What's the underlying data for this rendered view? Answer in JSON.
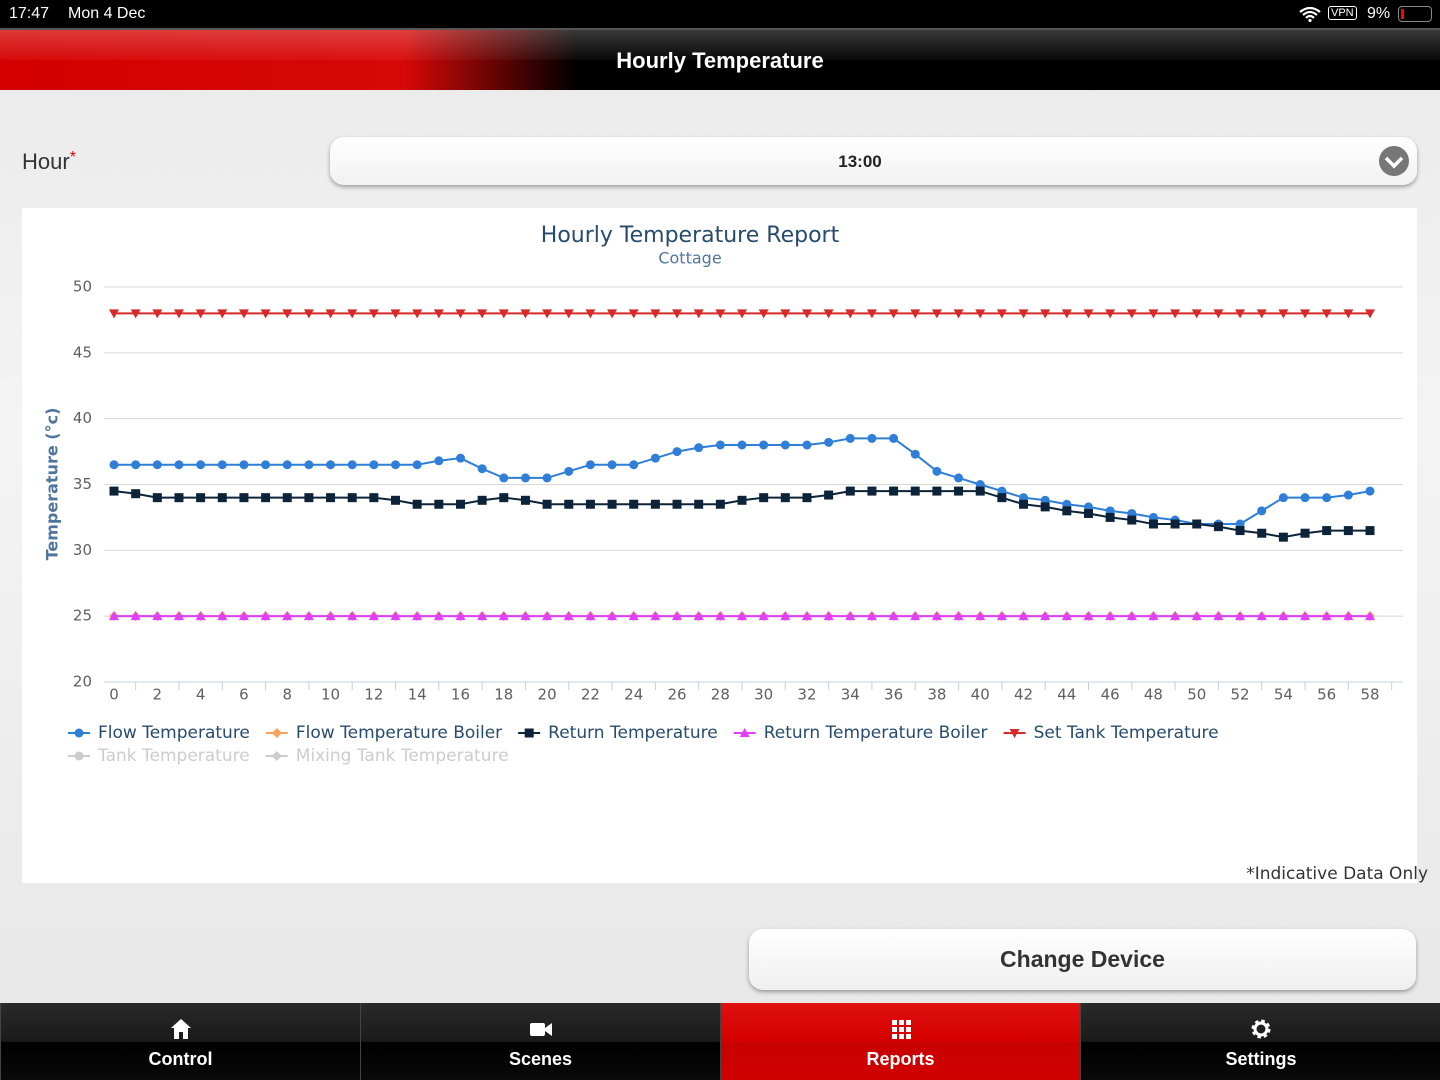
{
  "status_bar": {
    "time": "17:47",
    "date": "Mon 4 Dec",
    "vpn": "VPN",
    "battery": "9%"
  },
  "header": {
    "title": "Hourly Temperature"
  },
  "form": {
    "label": "Hour",
    "required": "*",
    "value": "13:00"
  },
  "chart_data": {
    "type": "line",
    "title": "Hourly Temperature Report",
    "subtitle": "Cottage",
    "y_label": "Temperature (°c)",
    "x": [
      0,
      1,
      2,
      3,
      4,
      5,
      6,
      7,
      8,
      9,
      10,
      11,
      12,
      13,
      14,
      15,
      16,
      17,
      18,
      19,
      20,
      21,
      22,
      23,
      24,
      25,
      26,
      27,
      28,
      29,
      30,
      31,
      32,
      33,
      34,
      35,
      36,
      37,
      38,
      39,
      40,
      41,
      42,
      43,
      44,
      45,
      46,
      47,
      48,
      49,
      50,
      51,
      52,
      53,
      54,
      55,
      56,
      57,
      58
    ],
    "xlim": [
      0,
      58
    ],
    "xticks": [
      0,
      2,
      4,
      6,
      8,
      10,
      12,
      14,
      16,
      18,
      20,
      22,
      24,
      26,
      28,
      30,
      32,
      34,
      36,
      38,
      40,
      42,
      44,
      46,
      48,
      50,
      52,
      54,
      56,
      58
    ],
    "ylim": [
      20,
      50
    ],
    "yticks": [
      20,
      25,
      30,
      35,
      40,
      45,
      50
    ],
    "grid": true,
    "series": [
      {
        "name": "Flow Temperature",
        "color": "#2f7ed8",
        "marker": "circle",
        "values": [
          36.5,
          36.5,
          36.5,
          36.5,
          36.5,
          36.5,
          36.5,
          36.5,
          36.5,
          36.5,
          36.5,
          36.5,
          36.5,
          36.5,
          36.5,
          36.8,
          37,
          36.2,
          35.5,
          35.5,
          35.5,
          36,
          36.5,
          36.5,
          36.5,
          37,
          37.5,
          37.8,
          38,
          38,
          38,
          38,
          38,
          38.2,
          38.5,
          38.5,
          38.5,
          37.3,
          36,
          35.5,
          35,
          34.5,
          34,
          33.8,
          33.5,
          33.3,
          33,
          32.8,
          32.5,
          32.3,
          32,
          32,
          32,
          33,
          34,
          34,
          34,
          34.2,
          34.5
        ]
      },
      {
        "name": "Flow Temperature Boiler",
        "color": "#f7a35c",
        "marker": "diamond",
        "values": [
          25,
          25,
          25,
          25,
          25,
          25,
          25,
          25,
          25,
          25,
          25,
          25,
          25,
          25,
          25,
          25,
          25,
          25,
          25,
          25,
          25,
          25,
          25,
          25,
          25,
          25,
          25,
          25,
          25,
          25,
          25,
          25,
          25,
          25,
          25,
          25,
          25,
          25,
          25,
          25,
          25,
          25,
          25,
          25,
          25,
          25,
          25,
          25,
          25,
          25,
          25,
          25,
          25,
          25,
          25,
          25,
          25,
          25,
          25
        ]
      },
      {
        "name": "Return Temperature",
        "color": "#0d233a",
        "marker": "square",
        "values": [
          34.5,
          34.3,
          34,
          34,
          34,
          34,
          34,
          34,
          34,
          34,
          34,
          34,
          34,
          33.8,
          33.5,
          33.5,
          33.5,
          33.8,
          34,
          33.8,
          33.5,
          33.5,
          33.5,
          33.5,
          33.5,
          33.5,
          33.5,
          33.5,
          33.5,
          33.8,
          34,
          34,
          34,
          34.2,
          34.5,
          34.5,
          34.5,
          34.5,
          34.5,
          34.5,
          34.5,
          34,
          33.5,
          33.3,
          33,
          32.8,
          32.5,
          32.3,
          32,
          32,
          32,
          31.8,
          31.5,
          31.3,
          31,
          31.3,
          31.5,
          31.5,
          31.5
        ]
      },
      {
        "name": "Return Temperature Boiler",
        "color": "#e040fb",
        "marker": "triangle",
        "values": [
          25,
          25,
          25,
          25,
          25,
          25,
          25,
          25,
          25,
          25,
          25,
          25,
          25,
          25,
          25,
          25,
          25,
          25,
          25,
          25,
          25,
          25,
          25,
          25,
          25,
          25,
          25,
          25,
          25,
          25,
          25,
          25,
          25,
          25,
          25,
          25,
          25,
          25,
          25,
          25,
          25,
          25,
          25,
          25,
          25,
          25,
          25,
          25,
          25,
          25,
          25,
          25,
          25,
          25,
          25,
          25,
          25,
          25,
          25
        ]
      },
      {
        "name": "Set Tank Temperature",
        "color": "#d42a2a",
        "marker": "triangle-down",
        "values": [
          48,
          48,
          48,
          48,
          48,
          48,
          48,
          48,
          48,
          48,
          48,
          48,
          48,
          48,
          48,
          48,
          48,
          48,
          48,
          48,
          48,
          48,
          48,
          48,
          48,
          48,
          48,
          48,
          48,
          48,
          48,
          48,
          48,
          48,
          48,
          48,
          48,
          48,
          48,
          48,
          48,
          48,
          48,
          48,
          48,
          48,
          48,
          48,
          48,
          48,
          48,
          48,
          48,
          48,
          48,
          48,
          48,
          48,
          48
        ]
      },
      {
        "name": "Tank Temperature",
        "color": "#cccccc",
        "marker": "circle",
        "visible": false
      },
      {
        "name": "Mixing Tank Temperature",
        "color": "#cccccc",
        "marker": "diamond",
        "visible": false
      }
    ]
  },
  "note": "*Indicative Data Only",
  "button": "Change Device",
  "tabs": [
    {
      "label": "Control"
    },
    {
      "label": "Scenes"
    },
    {
      "label": "Reports",
      "active": true
    },
    {
      "label": "Settings"
    }
  ]
}
